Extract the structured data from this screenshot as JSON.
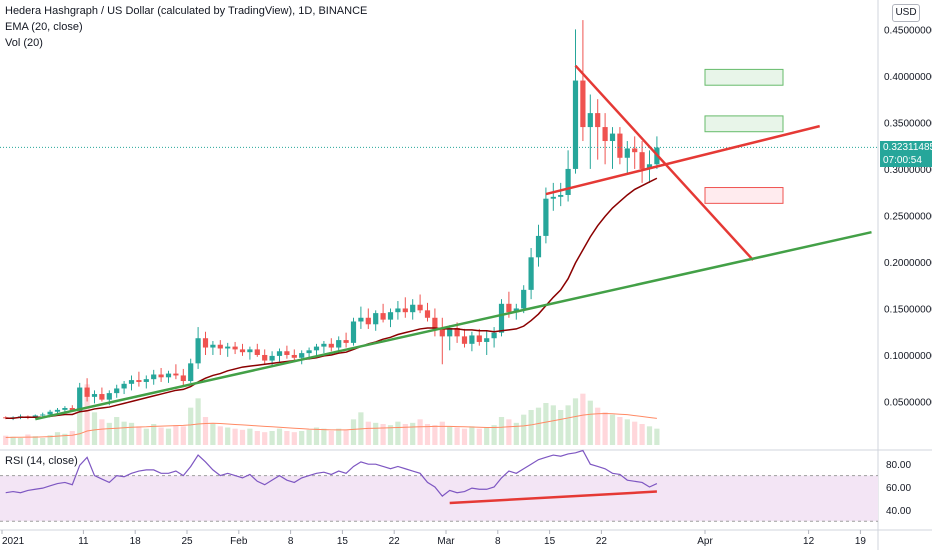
{
  "legend": {
    "symbol": "Hedera Hashgraph / US Dollar (calculated by TradingView), 1D, BINANCE",
    "ema": "EMA (20, close)",
    "vol": "Vol (20)",
    "rsi": "RSI (14, close)"
  },
  "currency_button": "USD",
  "last_price": {
    "value": "0.32311485",
    "countdown": "07:00:54"
  },
  "colors": {
    "up": "#26a69a",
    "down": "#ef5350",
    "ema": "#8b0000",
    "trendline_red": "#e53935",
    "trendline_green": "#43a047",
    "rsi": "#7e57c2",
    "rsi_band": "#f3e5f5"
  },
  "chart_data": {
    "type": "candlestick",
    "price_axis": {
      "min": 0.0,
      "max": 0.47,
      "ticks": [
        "0.45000000",
        "0.40000000",
        "0.35000000",
        "0.30000000",
        "0.25000000",
        "0.20000000",
        "0.15000000",
        "0.10000000",
        "0.05000000"
      ]
    },
    "rsi_axis": {
      "ticks": [
        "80.00",
        "60.00",
        "40.00"
      ],
      "band": [
        30,
        70
      ]
    },
    "x_axis": {
      "ticks": [
        "2021",
        "11",
        "18",
        "25",
        "Feb",
        "8",
        "15",
        "22",
        "Mar",
        "8",
        "15",
        "22",
        "Apr",
        "12",
        "19"
      ]
    },
    "candles": [
      [
        0.033,
        0.034,
        0.031,
        0.032
      ],
      [
        0.032,
        0.034,
        0.03,
        0.033
      ],
      [
        0.033,
        0.036,
        0.031,
        0.034
      ],
      [
        0.034,
        0.035,
        0.031,
        0.033
      ],
      [
        0.033,
        0.036,
        0.032,
        0.035
      ],
      [
        0.035,
        0.038,
        0.033,
        0.036
      ],
      [
        0.036,
        0.041,
        0.034,
        0.039
      ],
      [
        0.039,
        0.043,
        0.036,
        0.041
      ],
      [
        0.041,
        0.045,
        0.038,
        0.043
      ],
      [
        0.043,
        0.046,
        0.039,
        0.04
      ],
      [
        0.04,
        0.07,
        0.038,
        0.065
      ],
      [
        0.065,
        0.075,
        0.05,
        0.055
      ],
      [
        0.055,
        0.062,
        0.048,
        0.058
      ],
      [
        0.058,
        0.065,
        0.05,
        0.052
      ],
      [
        0.052,
        0.062,
        0.046,
        0.059
      ],
      [
        0.059,
        0.068,
        0.054,
        0.064
      ],
      [
        0.064,
        0.072,
        0.058,
        0.069
      ],
      [
        0.069,
        0.078,
        0.062,
        0.073
      ],
      [
        0.073,
        0.082,
        0.066,
        0.071
      ],
      [
        0.071,
        0.078,
        0.064,
        0.074
      ],
      [
        0.074,
        0.084,
        0.068,
        0.079
      ],
      [
        0.079,
        0.086,
        0.071,
        0.076
      ],
      [
        0.076,
        0.083,
        0.07,
        0.08
      ],
      [
        0.08,
        0.09,
        0.074,
        0.078
      ],
      [
        0.078,
        0.085,
        0.067,
        0.072
      ],
      [
        0.072,
        0.096,
        0.07,
        0.091
      ],
      [
        0.091,
        0.13,
        0.085,
        0.118
      ],
      [
        0.118,
        0.125,
        0.1,
        0.108
      ],
      [
        0.108,
        0.115,
        0.1,
        0.111
      ],
      [
        0.111,
        0.116,
        0.1,
        0.107
      ],
      [
        0.107,
        0.113,
        0.098,
        0.109
      ],
      [
        0.109,
        0.114,
        0.101,
        0.106
      ],
      [
        0.106,
        0.112,
        0.099,
        0.103
      ],
      [
        0.103,
        0.109,
        0.095,
        0.106
      ],
      [
        0.106,
        0.112,
        0.098,
        0.1
      ],
      [
        0.1,
        0.106,
        0.09,
        0.094
      ],
      [
        0.094,
        0.104,
        0.088,
        0.099
      ],
      [
        0.099,
        0.107,
        0.093,
        0.104
      ],
      [
        0.104,
        0.11,
        0.096,
        0.1
      ],
      [
        0.1,
        0.106,
        0.093,
        0.097
      ],
      [
        0.097,
        0.105,
        0.09,
        0.102
      ],
      [
        0.102,
        0.108,
        0.095,
        0.105
      ],
      [
        0.105,
        0.112,
        0.098,
        0.109
      ],
      [
        0.109,
        0.115,
        0.102,
        0.112
      ],
      [
        0.112,
        0.118,
        0.104,
        0.108
      ],
      [
        0.108,
        0.12,
        0.103,
        0.116
      ],
      [
        0.116,
        0.124,
        0.108,
        0.113
      ],
      [
        0.113,
        0.14,
        0.11,
        0.136
      ],
      [
        0.136,
        0.152,
        0.128,
        0.14
      ],
      [
        0.14,
        0.15,
        0.128,
        0.133
      ],
      [
        0.133,
        0.148,
        0.126,
        0.145
      ],
      [
        0.145,
        0.155,
        0.135,
        0.138
      ],
      [
        0.138,
        0.15,
        0.13,
        0.146
      ],
      [
        0.146,
        0.158,
        0.138,
        0.15
      ],
      [
        0.15,
        0.162,
        0.14,
        0.146
      ],
      [
        0.146,
        0.16,
        0.138,
        0.154
      ],
      [
        0.154,
        0.165,
        0.145,
        0.148
      ],
      [
        0.148,
        0.156,
        0.136,
        0.14
      ],
      [
        0.14,
        0.15,
        0.12,
        0.128
      ],
      [
        0.128,
        0.14,
        0.09,
        0.12
      ],
      [
        0.12,
        0.132,
        0.105,
        0.129
      ],
      [
        0.129,
        0.135,
        0.113,
        0.12
      ],
      [
        0.12,
        0.128,
        0.108,
        0.112
      ],
      [
        0.112,
        0.125,
        0.104,
        0.121
      ],
      [
        0.121,
        0.128,
        0.11,
        0.114
      ],
      [
        0.114,
        0.126,
        0.1,
        0.118
      ],
      [
        0.118,
        0.13,
        0.108,
        0.124
      ],
      [
        0.124,
        0.16,
        0.12,
        0.155
      ],
      [
        0.155,
        0.168,
        0.14,
        0.146
      ],
      [
        0.146,
        0.155,
        0.138,
        0.15
      ],
      [
        0.15,
        0.175,
        0.145,
        0.17
      ],
      [
        0.17,
        0.215,
        0.16,
        0.205
      ],
      [
        0.205,
        0.24,
        0.195,
        0.228
      ],
      [
        0.228,
        0.28,
        0.22,
        0.268
      ],
      [
        0.268,
        0.285,
        0.255,
        0.27
      ],
      [
        0.27,
        0.285,
        0.26,
        0.272
      ],
      [
        0.272,
        0.32,
        0.265,
        0.3
      ],
      [
        0.3,
        0.45,
        0.295,
        0.395
      ],
      [
        0.395,
        0.46,
        0.33,
        0.345
      ],
      [
        0.345,
        0.38,
        0.3,
        0.36
      ],
      [
        0.36,
        0.375,
        0.31,
        0.345
      ],
      [
        0.345,
        0.36,
        0.305,
        0.33
      ],
      [
        0.33,
        0.345,
        0.3,
        0.338
      ],
      [
        0.338,
        0.345,
        0.305,
        0.312
      ],
      [
        0.312,
        0.33,
        0.295,
        0.322
      ],
      [
        0.322,
        0.335,
        0.3,
        0.318
      ],
      [
        0.318,
        0.33,
        0.285,
        0.3
      ],
      [
        0.3,
        0.32,
        0.285,
        0.305
      ],
      [
        0.305,
        0.335,
        0.3,
        0.323
      ]
    ],
    "ema": [
      0.032,
      0.032,
      0.033,
      0.033,
      0.033,
      0.033,
      0.034,
      0.035,
      0.036,
      0.036,
      0.039,
      0.04,
      0.042,
      0.043,
      0.044,
      0.046,
      0.048,
      0.05,
      0.052,
      0.054,
      0.056,
      0.058,
      0.06,
      0.062,
      0.063,
      0.066,
      0.071,
      0.075,
      0.078,
      0.08,
      0.083,
      0.085,
      0.087,
      0.088,
      0.089,
      0.09,
      0.091,
      0.092,
      0.093,
      0.094,
      0.095,
      0.096,
      0.097,
      0.099,
      0.1,
      0.102,
      0.103,
      0.106,
      0.109,
      0.112,
      0.114,
      0.117,
      0.119,
      0.122,
      0.124,
      0.126,
      0.128,
      0.129,
      0.129,
      0.128,
      0.128,
      0.128,
      0.127,
      0.127,
      0.126,
      0.126,
      0.125,
      0.126,
      0.127,
      0.128,
      0.131,
      0.137,
      0.144,
      0.153,
      0.162,
      0.17,
      0.182,
      0.199,
      0.213,
      0.227,
      0.239,
      0.249,
      0.258,
      0.265,
      0.272,
      0.278,
      0.282,
      0.286,
      0.29
    ],
    "volume": [
      40,
      35,
      30,
      45,
      38,
      30,
      42,
      55,
      48,
      60,
      180,
      260,
      140,
      110,
      95,
      120,
      100,
      95,
      80,
      70,
      90,
      75,
      70,
      85,
      80,
      160,
      200,
      120,
      90,
      80,
      75,
      70,
      65,
      70,
      60,
      55,
      60,
      70,
      60,
      55,
      60,
      65,
      75,
      70,
      60,
      70,
      65,
      110,
      140,
      100,
      95,
      90,
      85,
      100,
      90,
      95,
      110,
      90,
      85,
      100,
      80,
      75,
      70,
      80,
      70,
      75,
      85,
      120,
      110,
      95,
      130,
      150,
      160,
      180,
      170,
      150,
      170,
      200,
      220,
      190,
      160,
      140,
      130,
      120,
      110,
      100,
      90,
      80,
      70
    ],
    "volume_ma": [
      32,
      33,
      33,
      34,
      34,
      35,
      36,
      38,
      40,
      42,
      48,
      60,
      65,
      68,
      70,
      72,
      74,
      76,
      77,
      78,
      80,
      81,
      82,
      83,
      84,
      86,
      90,
      92,
      93,
      92,
      90,
      88,
      86,
      84,
      82,
      80,
      78,
      76,
      74,
      72,
      70,
      68,
      67,
      66,
      65,
      65,
      65,
      67,
      69,
      71,
      72,
      73,
      74,
      75,
      76,
      77,
      78,
      79,
      80,
      80,
      80,
      79,
      78,
      77,
      76,
      75,
      75,
      76,
      78,
      80,
      82,
      86,
      92,
      98,
      104,
      110,
      116,
      122,
      128,
      132,
      134,
      135,
      134,
      132,
      130,
      126,
      122,
      118,
      114
    ],
    "rsi": [
      55,
      56,
      55,
      57,
      58,
      59,
      61,
      63,
      64,
      62,
      79,
      86,
      70,
      67,
      64,
      70,
      69,
      72,
      74,
      75,
      75,
      72,
      72,
      74,
      70,
      78,
      88,
      82,
      75,
      70,
      72,
      70,
      68,
      71,
      65,
      62,
      66,
      70,
      66,
      64,
      68,
      70,
      72,
      73,
      71,
      74,
      72,
      78,
      82,
      80,
      80,
      78,
      76,
      78,
      76,
      74,
      72,
      64,
      60,
      52,
      57,
      55,
      56,
      59,
      58,
      58,
      60,
      68,
      74,
      72,
      76,
      80,
      84,
      86,
      88,
      87,
      89,
      90,
      92,
      80,
      78,
      76,
      72,
      71,
      66,
      65,
      64,
      60,
      63
    ],
    "trendlines": [
      {
        "color": "red",
        "points": [
          [
            73,
            0.273
          ],
          [
            110,
            0.346
          ]
        ]
      },
      {
        "color": "red",
        "points": [
          [
            77,
            0.411
          ],
          [
            101,
            0.202
          ]
        ]
      },
      {
        "color": "green",
        "points": [
          [
            4,
            0.031
          ],
          [
            117,
            0.232
          ]
        ]
      },
      {
        "color": "red",
        "pane": "rsi",
        "points": [
          [
            60,
            46
          ],
          [
            88,
            56
          ]
        ]
      }
    ],
    "target_boxes": [
      {
        "color": "green",
        "low": 0.39,
        "high": 0.407
      },
      {
        "color": "green",
        "low": 0.34,
        "high": 0.357
      },
      {
        "color": "red",
        "low": 0.263,
        "high": 0.28
      }
    ]
  }
}
